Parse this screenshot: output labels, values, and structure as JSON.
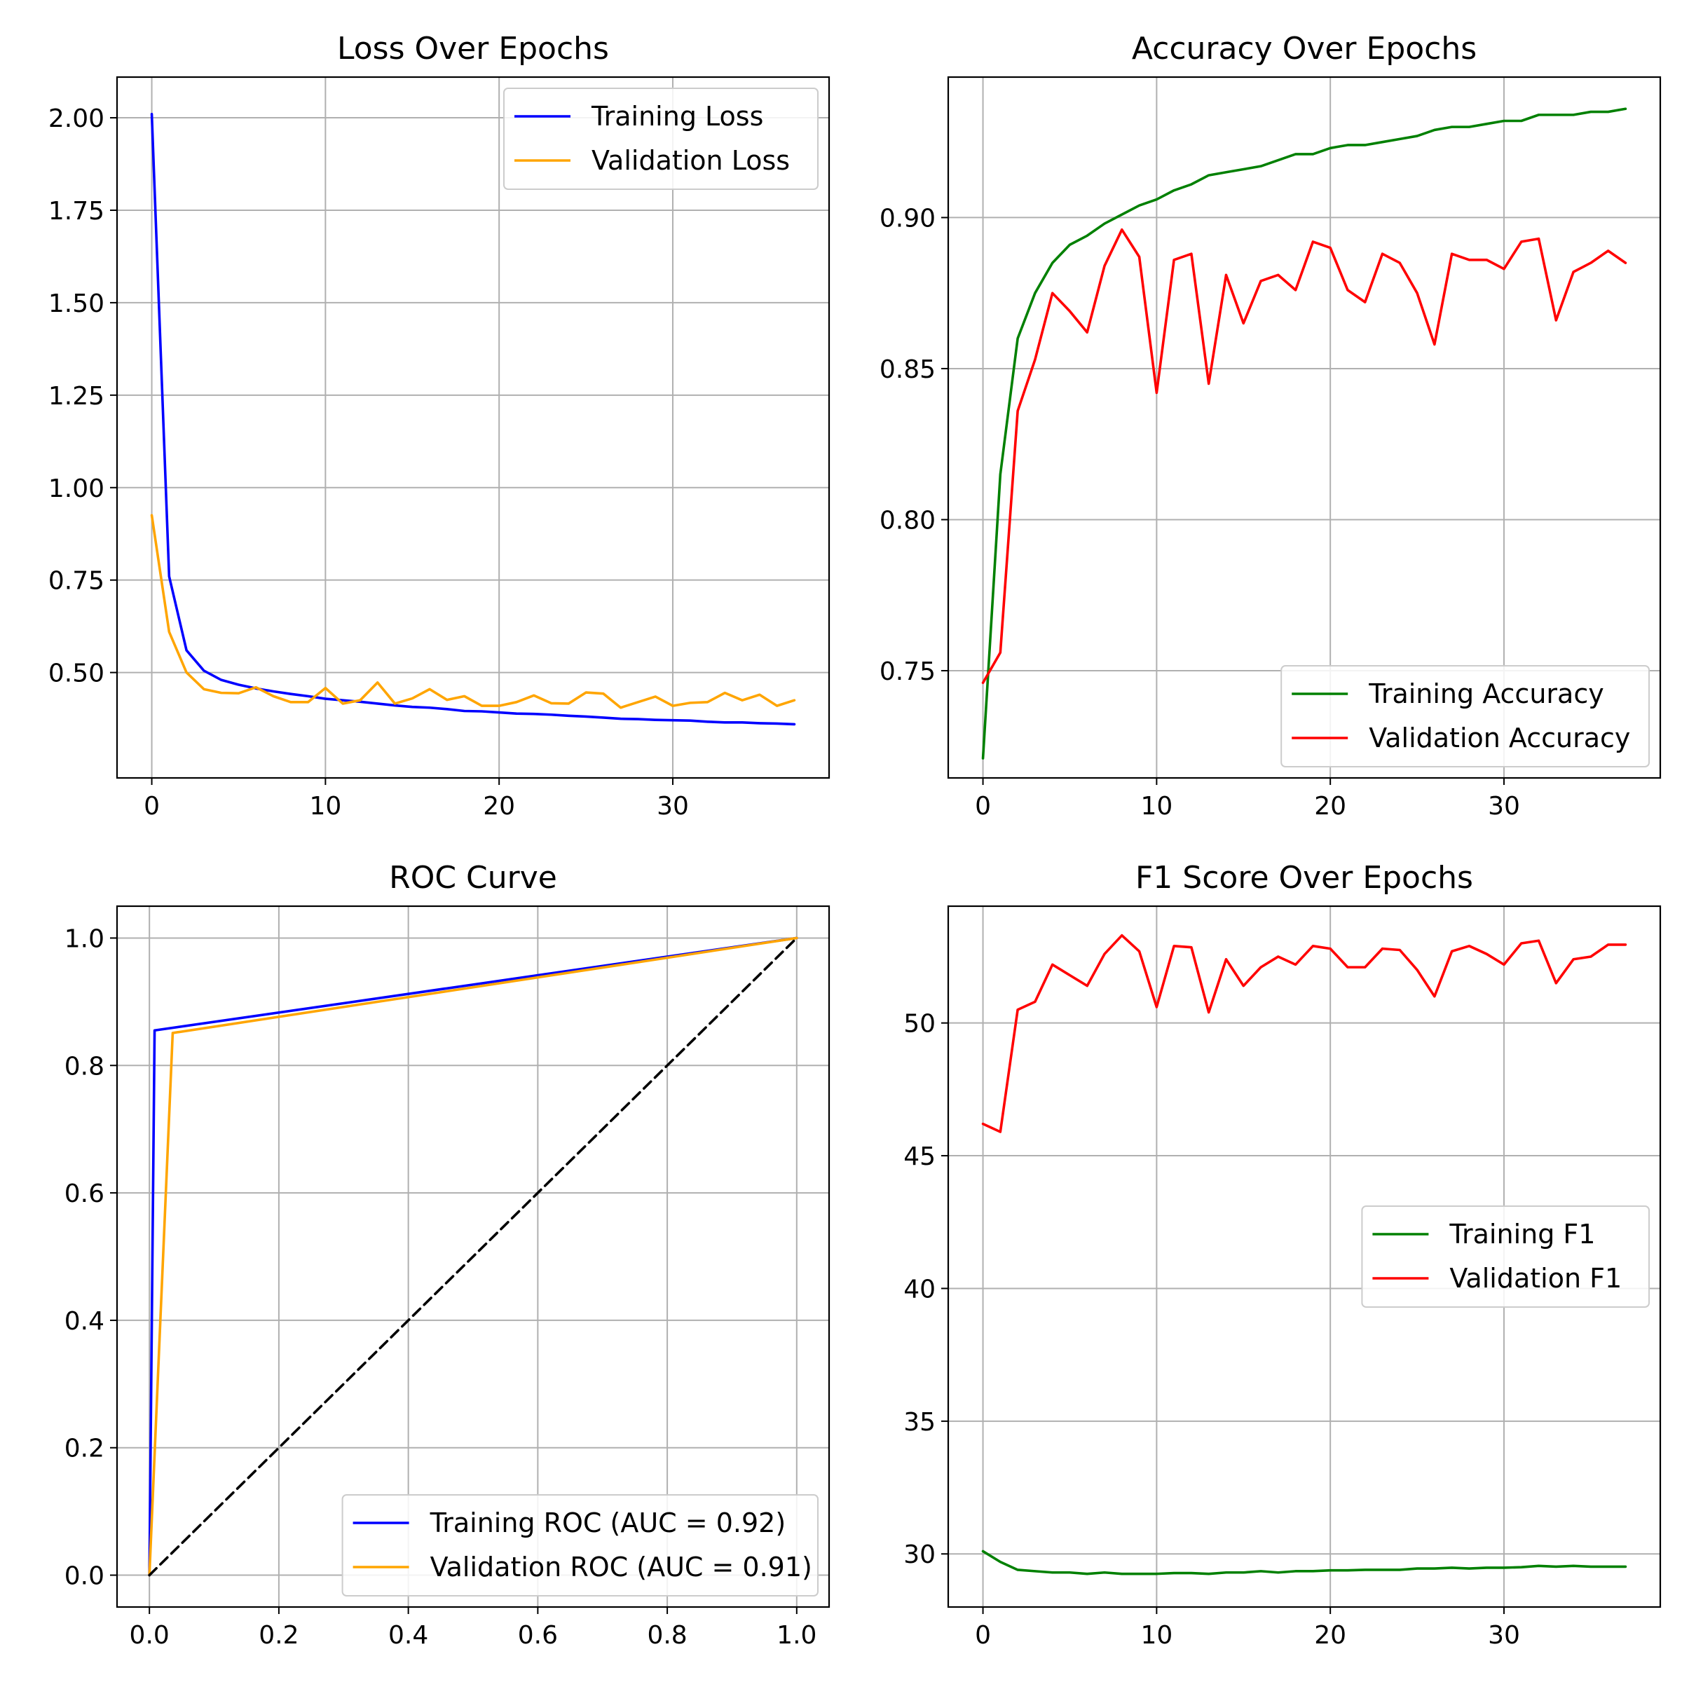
{
  "chart_data": [
    {
      "id": "loss",
      "type": "line",
      "title": "Loss Over Epochs",
      "xlabel": "",
      "ylabel": "",
      "xlim": [
        -2,
        39
      ],
      "ylim": [
        0.215,
        2.11
      ],
      "xticks": [
        0,
        10,
        20,
        30
      ],
      "xtick_labels": [
        "0",
        "10",
        "20",
        "30"
      ],
      "yticks": [
        0.5,
        0.75,
        1.0,
        1.25,
        1.5,
        1.75,
        2.0
      ],
      "ytick_labels": [
        "0.50",
        "0.75",
        "1.00",
        "1.25",
        "1.50",
        "1.75",
        "2.00"
      ],
      "grid": true,
      "legend_position": "upper right",
      "x": [
        0,
        1,
        2,
        3,
        4,
        5,
        6,
        7,
        8,
        9,
        10,
        11,
        12,
        13,
        14,
        15,
        16,
        17,
        18,
        19,
        20,
        21,
        22,
        23,
        24,
        25,
        26,
        27,
        28,
        29,
        30,
        31,
        32,
        33,
        34,
        35,
        36,
        37
      ],
      "series": [
        {
          "name": "Training Loss",
          "color": "#0000ff",
          "values": [
            2.01,
            0.76,
            0.56,
            0.505,
            0.48,
            0.467,
            0.457,
            0.449,
            0.442,
            0.436,
            0.429,
            0.425,
            0.421,
            0.416,
            0.411,
            0.407,
            0.405,
            0.401,
            0.396,
            0.395,
            0.392,
            0.389,
            0.388,
            0.386,
            0.383,
            0.381,
            0.378,
            0.375,
            0.374,
            0.372,
            0.371,
            0.37,
            0.367,
            0.365,
            0.365,
            0.363,
            0.362,
            0.36
          ]
        },
        {
          "name": "Validation Loss",
          "color": "#ffa500",
          "values": [
            0.925,
            0.61,
            0.5,
            0.455,
            0.445,
            0.444,
            0.46,
            0.436,
            0.42,
            0.42,
            0.458,
            0.416,
            0.425,
            0.473,
            0.416,
            0.43,
            0.455,
            0.426,
            0.436,
            0.41,
            0.41,
            0.42,
            0.438,
            0.417,
            0.416,
            0.446,
            0.443,
            0.405,
            0.42,
            0.435,
            0.41,
            0.418,
            0.42,
            0.445,
            0.425,
            0.44,
            0.41,
            0.425
          ]
        }
      ]
    },
    {
      "id": "accuracy",
      "type": "line",
      "title": "Accuracy Over Epochs",
      "xlabel": "",
      "ylabel": "",
      "xlim": [
        -2,
        39
      ],
      "ylim": [
        0.7145,
        0.9465
      ],
      "xticks": [
        0,
        10,
        20,
        30
      ],
      "xtick_labels": [
        "0",
        "10",
        "20",
        "30"
      ],
      "yticks": [
        0.75,
        0.8,
        0.85,
        0.9
      ],
      "ytick_labels": [
        "0.75",
        "0.80",
        "0.85",
        "0.90"
      ],
      "grid": true,
      "legend_position": "lower right",
      "x": [
        0,
        1,
        2,
        3,
        4,
        5,
        6,
        7,
        8,
        9,
        10,
        11,
        12,
        13,
        14,
        15,
        16,
        17,
        18,
        19,
        20,
        21,
        22,
        23,
        24,
        25,
        26,
        27,
        28,
        29,
        30,
        31,
        32,
        33,
        34,
        35,
        36,
        37
      ],
      "series": [
        {
          "name": "Training Accuracy",
          "color": "#008000",
          "values": [
            0.721,
            0.815,
            0.86,
            0.875,
            0.885,
            0.891,
            0.894,
            0.898,
            0.901,
            0.904,
            0.906,
            0.909,
            0.911,
            0.914,
            0.915,
            0.916,
            0.917,
            0.919,
            0.921,
            0.921,
            0.923,
            0.924,
            0.924,
            0.925,
            0.926,
            0.927,
            0.929,
            0.93,
            0.93,
            0.931,
            0.932,
            0.932,
            0.934,
            0.934,
            0.934,
            0.935,
            0.935,
            0.936
          ]
        },
        {
          "name": "Validation Accuracy",
          "color": "#ff0000",
          "values": [
            0.746,
            0.756,
            0.836,
            0.853,
            0.875,
            0.869,
            0.862,
            0.884,
            0.896,
            0.887,
            0.842,
            0.886,
            0.888,
            0.845,
            0.881,
            0.865,
            0.879,
            0.881,
            0.876,
            0.892,
            0.89,
            0.876,
            0.872,
            0.888,
            0.885,
            0.875,
            0.858,
            0.888,
            0.886,
            0.886,
            0.883,
            0.892,
            0.893,
            0.866,
            0.882,
            0.885,
            0.889,
            0.885
          ]
        }
      ]
    },
    {
      "id": "roc",
      "type": "line",
      "title": "ROC Curve",
      "xlabel": "",
      "ylabel": "",
      "xlim": [
        -0.05,
        1.05
      ],
      "ylim": [
        -0.05,
        1.05
      ],
      "xticks": [
        0,
        0.2,
        0.4,
        0.6,
        0.8,
        1.0
      ],
      "xtick_labels": [
        "0.0",
        "0.2",
        "0.4",
        "0.6",
        "0.8",
        "1.0"
      ],
      "yticks": [
        0,
        0.2,
        0.4,
        0.6,
        0.8,
        1.0
      ],
      "ytick_labels": [
        "0.0",
        "0.2",
        "0.4",
        "0.6",
        "0.8",
        "1.0"
      ],
      "grid": true,
      "legend_position": "lower right",
      "series": [
        {
          "name": "Training ROC (AUC = 0.92)",
          "color": "#0000ff",
          "x": [
            0,
            0.008,
            1.0
          ],
          "values": [
            0,
            0.855,
            1.0
          ]
        },
        {
          "name": "Validation ROC (AUC = 0.91)",
          "color": "#ffa500",
          "x": [
            0,
            0.036,
            1.0
          ],
          "values": [
            0,
            0.851,
            1.0
          ]
        },
        {
          "name": "",
          "color": "#000000",
          "dashed": true,
          "x": [
            0,
            1.0
          ],
          "values": [
            0,
            1.0
          ]
        }
      ]
    },
    {
      "id": "f1",
      "type": "line",
      "title": "F1 Score Over Epochs",
      "xlabel": "",
      "ylabel": "",
      "xlim": [
        -2,
        39
      ],
      "ylim": [
        28.0,
        54.4
      ],
      "xticks": [
        0,
        10,
        20,
        30
      ],
      "xtick_labels": [
        "0",
        "10",
        "20",
        "30"
      ],
      "yticks": [
        30,
        35,
        40,
        45,
        50
      ],
      "ytick_labels": [
        "30",
        "35",
        "40",
        "45",
        "50"
      ],
      "grid": true,
      "legend_position": "center right",
      "x": [
        0,
        1,
        2,
        3,
        4,
        5,
        6,
        7,
        8,
        9,
        10,
        11,
        12,
        13,
        14,
        15,
        16,
        17,
        18,
        19,
        20,
        21,
        22,
        23,
        24,
        25,
        26,
        27,
        28,
        29,
        30,
        31,
        32,
        33,
        34,
        35,
        36,
        37
      ],
      "series": [
        {
          "name": "Training F1",
          "color": "#008000",
          "values": [
            30.1,
            29.7,
            29.4,
            29.35,
            29.3,
            29.3,
            29.25,
            29.3,
            29.25,
            29.25,
            29.25,
            29.28,
            29.28,
            29.25,
            29.3,
            29.3,
            29.35,
            29.3,
            29.35,
            29.35,
            29.38,
            29.38,
            29.4,
            29.4,
            29.4,
            29.45,
            29.45,
            29.48,
            29.45,
            29.48,
            29.48,
            29.5,
            29.55,
            29.52,
            29.55,
            29.52,
            29.52,
            29.52
          ]
        },
        {
          "name": "Validation F1",
          "color": "#ff0000",
          "values": [
            46.2,
            45.9,
            50.5,
            50.8,
            52.2,
            51.8,
            51.4,
            52.6,
            53.3,
            52.7,
            50.6,
            52.9,
            52.85,
            50.4,
            52.4,
            51.4,
            52.1,
            52.5,
            52.2,
            52.9,
            52.8,
            52.1,
            52.1,
            52.8,
            52.75,
            52.0,
            51.0,
            52.7,
            52.9,
            52.6,
            52.2,
            53.0,
            53.1,
            51.5,
            52.4,
            52.5,
            52.95,
            52.95
          ]
        }
      ]
    }
  ]
}
